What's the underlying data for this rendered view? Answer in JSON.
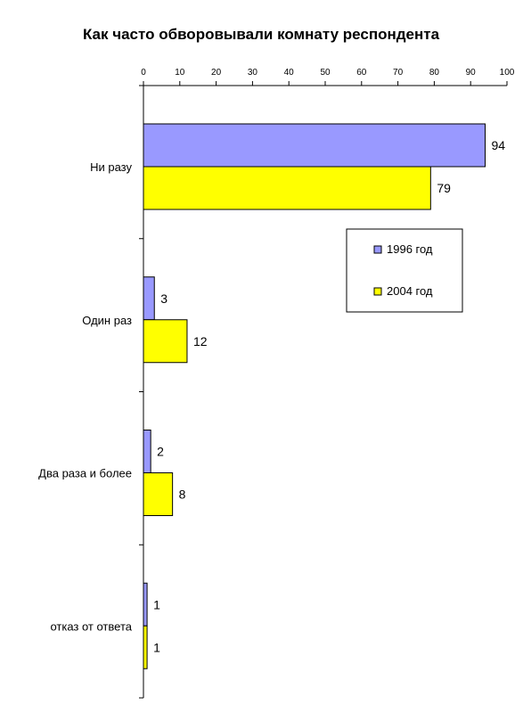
{
  "chart_data": {
    "type": "bar",
    "orientation": "horizontal",
    "title": "Как часто обворовывали комнату респондента",
    "categories": [
      "Ни разу",
      "Один раз",
      "Два раза и более",
      "отказ от ответа"
    ],
    "series": [
      {
        "name": "1996 год",
        "values": [
          94,
          3,
          2,
          1
        ],
        "color": "#9999FF"
      },
      {
        "name": "2004 год",
        "values": [
          79,
          12,
          8,
          1
        ],
        "color": "#FFFF00"
      }
    ],
    "xlim": [
      0,
      100
    ],
    "xticks": [
      0,
      10,
      20,
      30,
      40,
      50,
      60,
      70,
      80,
      90,
      100
    ],
    "x_axis_position": "top",
    "grid": false,
    "legend_position": "right",
    "data_labels": true
  }
}
